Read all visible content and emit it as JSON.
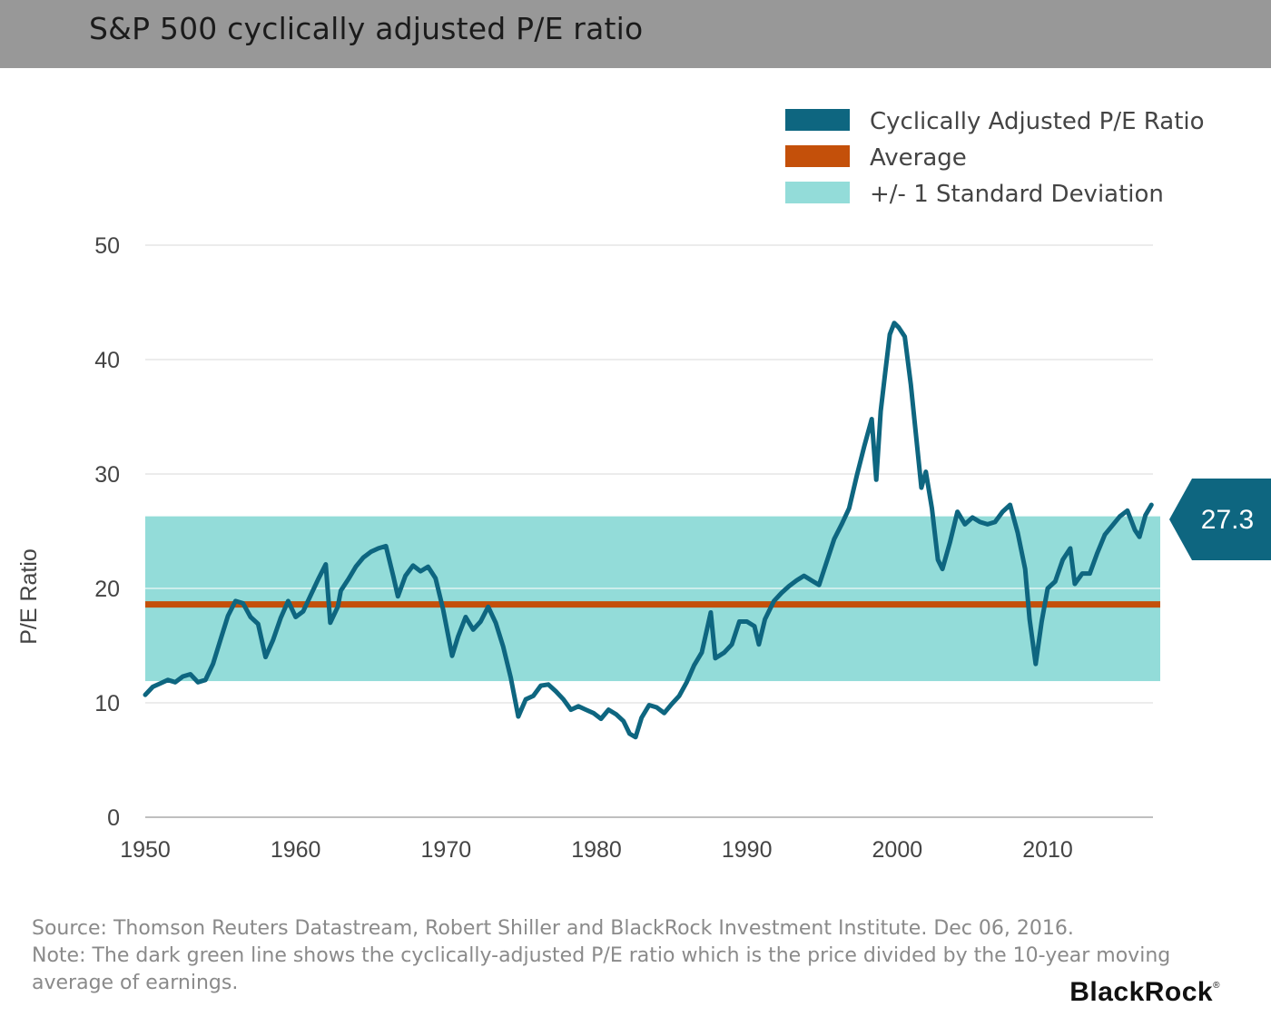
{
  "header": {
    "title": "S&P 500 cyclically adjusted P/E ratio"
  },
  "chart_data": {
    "type": "line",
    "title": "S&P 500 cyclically adjusted P/E ratio",
    "ylabel": "P/E Ratio",
    "xlabel": "",
    "xlim": [
      1950,
      2017
    ],
    "ylim": [
      0,
      50
    ],
    "x_ticks": [
      "1950",
      "1960",
      "1970",
      "1980",
      "1990",
      "2000",
      "2010"
    ],
    "y_ticks": [
      "0",
      "10",
      "20",
      "30",
      "40",
      "50"
    ],
    "grid": "horizontal",
    "legend_position": "top-right",
    "legend": [
      {
        "label": "Cyclically Adjusted P/E Ratio",
        "color": "#0e6680"
      },
      {
        "label": "Average",
        "color": "#c4500a"
      },
      {
        "label": "+/- 1 Standard Deviation",
        "color": "#93dcd9"
      }
    ],
    "average": 18.6,
    "std_band": [
      11.9,
      26.3
    ],
    "latest_value_label": "27.3",
    "series": [
      {
        "name": "Cyclically Adjusted P/E Ratio",
        "color": "#0e6680",
        "points": [
          [
            1950.0,
            10.7
          ],
          [
            1950.5,
            11.4
          ],
          [
            1951.0,
            11.7
          ],
          [
            1951.5,
            12.0
          ],
          [
            1952.0,
            11.8
          ],
          [
            1952.5,
            12.3
          ],
          [
            1953.0,
            12.5
          ],
          [
            1953.5,
            11.8
          ],
          [
            1954.0,
            12.0
          ],
          [
            1954.5,
            13.4
          ],
          [
            1955.0,
            15.5
          ],
          [
            1955.5,
            17.6
          ],
          [
            1956.0,
            18.9
          ],
          [
            1956.5,
            18.7
          ],
          [
            1957.0,
            17.5
          ],
          [
            1957.5,
            16.9
          ],
          [
            1958.0,
            14.0
          ],
          [
            1958.5,
            15.5
          ],
          [
            1959.0,
            17.4
          ],
          [
            1959.5,
            18.9
          ],
          [
            1960.0,
            17.5
          ],
          [
            1960.5,
            18.0
          ],
          [
            1961.0,
            19.4
          ],
          [
            1961.5,
            20.8
          ],
          [
            1962.0,
            22.1
          ],
          [
            1962.3,
            17.0
          ],
          [
            1962.8,
            18.4
          ],
          [
            1963.0,
            19.8
          ],
          [
            1963.5,
            20.8
          ],
          [
            1964.0,
            21.9
          ],
          [
            1964.5,
            22.7
          ],
          [
            1965.0,
            23.2
          ],
          [
            1965.5,
            23.5
          ],
          [
            1966.0,
            23.7
          ],
          [
            1966.5,
            21.0
          ],
          [
            1966.8,
            19.3
          ],
          [
            1967.3,
            21.1
          ],
          [
            1967.8,
            22.0
          ],
          [
            1968.3,
            21.5
          ],
          [
            1968.8,
            21.9
          ],
          [
            1969.3,
            20.9
          ],
          [
            1969.8,
            18.2
          ],
          [
            1970.4,
            14.1
          ],
          [
            1970.8,
            15.8
          ],
          [
            1971.3,
            17.5
          ],
          [
            1971.8,
            16.4
          ],
          [
            1972.3,
            17.1
          ],
          [
            1972.8,
            18.4
          ],
          [
            1973.3,
            17.0
          ],
          [
            1973.8,
            14.9
          ],
          [
            1974.3,
            12.2
          ],
          [
            1974.8,
            8.8
          ],
          [
            1975.3,
            10.3
          ],
          [
            1975.8,
            10.6
          ],
          [
            1976.3,
            11.5
          ],
          [
            1976.8,
            11.6
          ],
          [
            1977.3,
            11.0
          ],
          [
            1977.8,
            10.3
          ],
          [
            1978.3,
            9.4
          ],
          [
            1978.8,
            9.7
          ],
          [
            1979.3,
            9.4
          ],
          [
            1979.8,
            9.1
          ],
          [
            1980.3,
            8.6
          ],
          [
            1980.8,
            9.4
          ],
          [
            1981.3,
            9.0
          ],
          [
            1981.8,
            8.4
          ],
          [
            1982.2,
            7.3
          ],
          [
            1982.6,
            7.0
          ],
          [
            1983.0,
            8.7
          ],
          [
            1983.5,
            9.8
          ],
          [
            1984.0,
            9.6
          ],
          [
            1984.5,
            9.1
          ],
          [
            1985.0,
            9.9
          ],
          [
            1985.5,
            10.6
          ],
          [
            1986.0,
            11.8
          ],
          [
            1986.5,
            13.3
          ],
          [
            1987.0,
            14.4
          ],
          [
            1987.6,
            17.9
          ],
          [
            1987.9,
            13.9
          ],
          [
            1988.5,
            14.4
          ],
          [
            1989.0,
            15.1
          ],
          [
            1989.5,
            17.1
          ],
          [
            1990.0,
            17.1
          ],
          [
            1990.5,
            16.7
          ],
          [
            1990.8,
            15.1
          ],
          [
            1991.2,
            17.3
          ],
          [
            1991.8,
            18.9
          ],
          [
            1992.3,
            19.6
          ],
          [
            1992.8,
            20.2
          ],
          [
            1993.3,
            20.7
          ],
          [
            1993.8,
            21.1
          ],
          [
            1994.3,
            20.7
          ],
          [
            1994.8,
            20.3
          ],
          [
            1995.3,
            22.3
          ],
          [
            1995.8,
            24.3
          ],
          [
            1996.3,
            25.6
          ],
          [
            1996.8,
            27.0
          ],
          [
            1997.3,
            29.8
          ],
          [
            1997.8,
            32.4
          ],
          [
            1998.3,
            34.8
          ],
          [
            1998.6,
            29.5
          ],
          [
            1998.9,
            35.5
          ],
          [
            1999.2,
            38.9
          ],
          [
            1999.5,
            42.2
          ],
          [
            1999.8,
            43.2
          ],
          [
            2000.1,
            42.8
          ],
          [
            2000.5,
            42.0
          ],
          [
            2000.9,
            37.8
          ],
          [
            2001.2,
            34.0
          ],
          [
            2001.6,
            28.8
          ],
          [
            2001.9,
            30.2
          ],
          [
            2002.3,
            27.0
          ],
          [
            2002.7,
            22.5
          ],
          [
            2003.0,
            21.7
          ],
          [
            2003.5,
            24.0
          ],
          [
            2004.0,
            26.7
          ],
          [
            2004.5,
            25.6
          ],
          [
            2005.0,
            26.2
          ],
          [
            2005.5,
            25.8
          ],
          [
            2006.0,
            25.6
          ],
          [
            2006.5,
            25.8
          ],
          [
            2007.0,
            26.7
          ],
          [
            2007.5,
            27.3
          ],
          [
            2008.0,
            24.9
          ],
          [
            2008.5,
            21.7
          ],
          [
            2008.8,
            17.3
          ],
          [
            2009.2,
            13.4
          ],
          [
            2009.6,
            17.1
          ],
          [
            2010.0,
            20.0
          ],
          [
            2010.5,
            20.6
          ],
          [
            2011.0,
            22.5
          ],
          [
            2011.5,
            23.5
          ],
          [
            2011.8,
            20.4
          ],
          [
            2012.3,
            21.3
          ],
          [
            2012.8,
            21.3
          ],
          [
            2013.3,
            23.1
          ],
          [
            2013.8,
            24.7
          ],
          [
            2014.3,
            25.5
          ],
          [
            2014.8,
            26.3
          ],
          [
            2015.3,
            26.8
          ],
          [
            2015.8,
            25.1
          ],
          [
            2016.1,
            24.5
          ],
          [
            2016.5,
            26.4
          ],
          [
            2016.9,
            27.3
          ]
        ]
      }
    ]
  },
  "footer": {
    "source": "Source: Thomson Reuters Datastream, Robert Shiller and BlackRock Investment Institute. Dec 06, 2016.",
    "note": "Note: The dark green line shows the cyclically-adjusted P/E ratio which is the price divided by the 10-year moving average of earnings."
  },
  "logo": {
    "text": "BlackRock",
    "mark": "®"
  }
}
